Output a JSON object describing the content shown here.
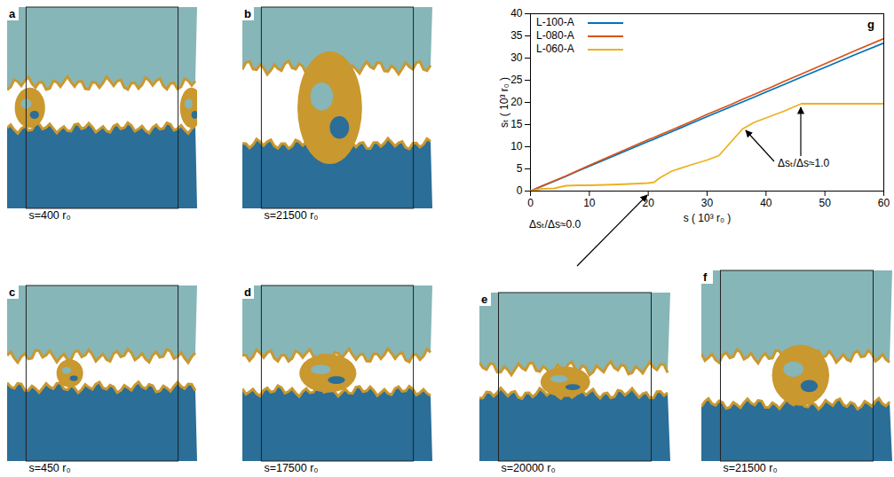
{
  "panels": [
    {
      "letter": "a",
      "caption": "s=400 r₀"
    },
    {
      "letter": "b",
      "caption": "s=21500 r₀"
    },
    {
      "letter": "c",
      "caption": "s=450 r₀"
    },
    {
      "letter": "d",
      "caption": "s=17500 r₀"
    },
    {
      "letter": "e",
      "caption": "s=20000 r₀"
    },
    {
      "letter": "f",
      "caption": "s=21500 r₀"
    }
  ],
  "chart_data": {
    "type": "line",
    "title": "g",
    "x_label": "s ( 10³ r₀ )",
    "y_label": "sₜ ( 10³ r₀ )",
    "x": [
      0,
      2,
      4,
      6,
      8,
      10,
      15,
      20,
      21,
      22,
      24,
      27,
      30,
      32,
      34,
      36,
      38,
      41,
      43,
      46,
      50,
      55,
      60
    ],
    "series": [
      {
        "name": "L-100-A",
        "color": "#0072bd",
        "values": [
          0,
          1.1,
          2.2,
          3.3,
          4.5,
          5.6,
          8.4,
          11.2,
          11.7,
          12.3,
          13.4,
          15.1,
          16.8,
          17.9,
          19.0,
          20.1,
          21.2,
          22.9,
          24.0,
          25.7,
          27.9,
          30.7,
          33.4
        ]
      },
      {
        "name": "L-080-A",
        "color": "#d95319",
        "values": [
          0,
          1.2,
          2.3,
          3.4,
          4.6,
          5.8,
          8.7,
          11.6,
          12.1,
          12.7,
          13.8,
          15.5,
          17.3,
          18.4,
          19.5,
          20.7,
          21.8,
          23.5,
          24.7,
          26.4,
          28.7,
          31.6,
          34.4
        ]
      },
      {
        "name": "L-060-A",
        "color": "#edb120",
        "values": [
          0,
          0.5,
          0.6,
          1.2,
          1.3,
          1.3,
          1.5,
          1.8,
          2.0,
          3.0,
          4.5,
          5.8,
          7.0,
          8.0,
          11.0,
          14.0,
          15.5,
          17.0,
          18.0,
          19.7,
          19.7,
          19.7,
          19.7
        ]
      }
    ],
    "xlim": [
      0,
      60
    ],
    "xticks": [
      0,
      10,
      20,
      30,
      40,
      50,
      60
    ],
    "ylim": [
      0,
      40
    ],
    "yticks": [
      0,
      5,
      10,
      15,
      20,
      25,
      30,
      35,
      40
    ],
    "legend": "top-left",
    "annotations": [
      {
        "text": "Δsₜ/Δs≈1.0"
      },
      {
        "text": "Δsₜ/Δs≈0.0"
      }
    ]
  }
}
